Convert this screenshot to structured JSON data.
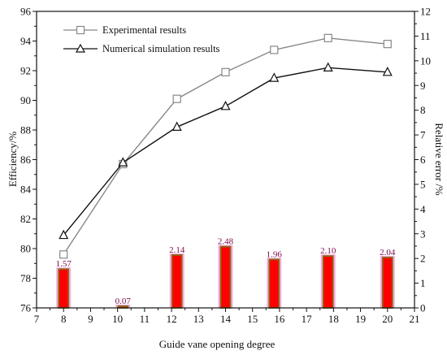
{
  "chart_data": {
    "type": "bar+line",
    "xlabel": "Guide vane opening degree",
    "ylabel_left": "Efficiency/%",
    "ylabel_right": "Relative error /%",
    "xlim": [
      7,
      21
    ],
    "ylim_left": [
      76,
      96
    ],
    "ylim_right": [
      0,
      12
    ],
    "x_ticks": [
      "7",
      "8",
      "9",
      "10",
      "11",
      "12",
      "13",
      "14",
      "15",
      "16",
      "17",
      "18",
      "19",
      "20",
      "21"
    ],
    "y_left_ticks": [
      "76",
      "78",
      "80",
      "82",
      "84",
      "86",
      "88",
      "90",
      "92",
      "94",
      "96"
    ],
    "y_right_ticks": [
      "0",
      "1",
      "2",
      "3",
      "4",
      "5",
      "6",
      "7",
      "8",
      "9",
      "10",
      "11",
      "12"
    ],
    "x": [
      8,
      10.2,
      12.2,
      14,
      15.8,
      17.8,
      20
    ],
    "series": [
      {
        "name": "Experimental results",
        "marker": "square",
        "axis": "left",
        "values": [
          79.6,
          85.7,
          90.1,
          91.9,
          93.4,
          94.2,
          93.8
        ]
      },
      {
        "name": "Numerical simulation results",
        "marker": "triangle",
        "axis": "left",
        "values": [
          80.9,
          85.8,
          88.2,
          89.6,
          91.5,
          92.2,
          91.9
        ]
      }
    ],
    "bars": {
      "axis": "right",
      "values": [
        1.57,
        0.07,
        2.14,
        2.48,
        1.96,
        2.1,
        2.04
      ],
      "labels": [
        "1.57",
        "0.07",
        "2.14",
        "2.48",
        "1.96",
        "2.10",
        "2.04"
      ],
      "fill_color": "#ff0000",
      "edge_color": "#8b6a1a",
      "glow_color": "#f06cc8"
    },
    "legend_position": "top-left",
    "grid": false
  }
}
